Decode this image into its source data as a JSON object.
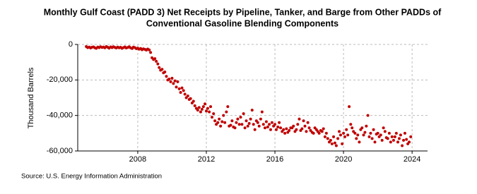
{
  "chart_data": {
    "type": "scatter",
    "title": "Monthly Gulf Coast (PADD 3) Net Receipts by Pipeline, Tanker, and Barge from Other PADDs of",
    "subtitle": "Conventional Gasoline Blending Components",
    "y_label": "Thousand Barrels",
    "source": "Source: U.S. Energy Information Administration",
    "color": "#c00000",
    "grid": true,
    "xlim": [
      2004.5,
      2024.9
    ],
    "xticks": [
      2008,
      2012,
      2016,
      2020,
      2024
    ],
    "ylim": [
      -60000,
      0
    ],
    "yticks": [
      {
        "value": -60000,
        "label": "-60,000"
      },
      {
        "value": -40000,
        "label": "-40,000"
      },
      {
        "value": -20000,
        "label": "-20,000"
      },
      0
    ],
    "x": [
      2005.0,
      2005.08,
      2005.17,
      2005.25,
      2005.33,
      2005.42,
      2005.5,
      2005.58,
      2005.67,
      2005.75,
      2005.83,
      2005.92,
      2006.0,
      2006.08,
      2006.17,
      2006.25,
      2006.33,
      2006.42,
      2006.5,
      2006.58,
      2006.67,
      2006.75,
      2006.83,
      2006.92,
      2007.0,
      2007.08,
      2007.17,
      2007.25,
      2007.33,
      2007.42,
      2007.5,
      2007.58,
      2007.67,
      2007.75,
      2007.83,
      2007.92,
      2008.0,
      2008.08,
      2008.17,
      2008.25,
      2008.33,
      2008.42,
      2008.5,
      2008.58,
      2008.67,
      2008.75,
      2008.83,
      2008.92,
      2009.0,
      2009.08,
      2009.17,
      2009.25,
      2009.33,
      2009.42,
      2009.5,
      2009.58,
      2009.67,
      2009.75,
      2009.83,
      2009.92,
      2010.0,
      2010.08,
      2010.17,
      2010.25,
      2010.33,
      2010.42,
      2010.5,
      2010.58,
      2010.67,
      2010.75,
      2010.83,
      2010.92,
      2011.0,
      2011.08,
      2011.17,
      2011.25,
      2011.33,
      2011.42,
      2011.5,
      2011.58,
      2011.67,
      2011.75,
      2011.83,
      2011.92,
      2012.0,
      2012.08,
      2012.17,
      2012.25,
      2012.33,
      2012.42,
      2012.5,
      2012.58,
      2012.67,
      2012.75,
      2012.83,
      2012.92,
      2013.0,
      2013.08,
      2013.17,
      2013.25,
      2013.33,
      2013.42,
      2013.5,
      2013.58,
      2013.67,
      2013.75,
      2013.83,
      2013.92,
      2014.0,
      2014.08,
      2014.17,
      2014.25,
      2014.33,
      2014.42,
      2014.5,
      2014.58,
      2014.67,
      2014.75,
      2014.83,
      2014.92,
      2015.0,
      2015.08,
      2015.17,
      2015.25,
      2015.33,
      2015.42,
      2015.5,
      2015.58,
      2015.67,
      2015.75,
      2015.83,
      2015.92,
      2016.0,
      2016.08,
      2016.17,
      2016.25,
      2016.33,
      2016.42,
      2016.5,
      2016.58,
      2016.67,
      2016.75,
      2016.83,
      2016.92,
      2017.0,
      2017.08,
      2017.17,
      2017.25,
      2017.33,
      2017.42,
      2017.5,
      2017.58,
      2017.67,
      2017.75,
      2017.83,
      2017.92,
      2018.0,
      2018.08,
      2018.17,
      2018.25,
      2018.33,
      2018.42,
      2018.5,
      2018.58,
      2018.67,
      2018.75,
      2018.83,
      2018.92,
      2019.0,
      2019.08,
      2019.17,
      2019.25,
      2019.33,
      2019.42,
      2019.5,
      2019.58,
      2019.67,
      2019.75,
      2019.83,
      2019.92,
      2020.0,
      2020.08,
      2020.17,
      2020.25,
      2020.33,
      2020.42,
      2020.5,
      2020.58,
      2020.67,
      2020.75,
      2020.83,
      2020.92,
      2021.0,
      2021.08,
      2021.17,
      2021.25,
      2021.33,
      2021.42,
      2021.5,
      2021.58,
      2021.67,
      2021.75,
      2021.83,
      2021.92,
      2022.0,
      2022.08,
      2022.17,
      2022.25,
      2022.33,
      2022.42,
      2022.5,
      2022.58,
      2022.67,
      2022.75,
      2022.83,
      2022.92,
      2023.0,
      2023.08,
      2023.17,
      2023.25,
      2023.33,
      2023.42,
      2023.5,
      2023.58,
      2023.67,
      2023.75,
      2023.83,
      2023.92
    ],
    "values": [
      -1200,
      -1800,
      -1500,
      -2000,
      -1600,
      -1400,
      -1900,
      -2200,
      -1500,
      -1800,
      -1300,
      -1700,
      -1500,
      -1900,
      -1200,
      -1600,
      -2100,
      -1400,
      -1800,
      -1300,
      -1700,
      -2000,
      -1500,
      -1900,
      -1600,
      -2200,
      -1800,
      -1400,
      -2000,
      -1700,
      -1300,
      -1900,
      -2300,
      -1500,
      -1800,
      -2400,
      -2100,
      -2700,
      -2300,
      -3000,
      -2500,
      -2800,
      -3200,
      -2600,
      -3100,
      -4500,
      -7500,
      -8500,
      -8000,
      -9500,
      -11000,
      -13000,
      -14500,
      -14000,
      -16000,
      -15500,
      -18000,
      -20000,
      -19500,
      -21000,
      -19000,
      -22000,
      -20500,
      -24000,
      -21000,
      -25000,
      -27000,
      -24500,
      -26000,
      -28000,
      -30000,
      -29000,
      -31000,
      -30500,
      -33000,
      -32000,
      -34500,
      -36000,
      -37000,
      -35500,
      -38000,
      -36500,
      -35000,
      -33500,
      -37500,
      -36000,
      -38000,
      -35000,
      -41000,
      -39000,
      -43000,
      -45000,
      -44000,
      -42000,
      -46000,
      -43500,
      -40000,
      -44000,
      -38000,
      -35000,
      -46000,
      -45500,
      -43000,
      -46500,
      -47000,
      -44000,
      -42000,
      -45000,
      -41000,
      -45000,
      -39000,
      -47000,
      -43000,
      -46000,
      -44500,
      -42000,
      -37000,
      -45000,
      -48000,
      -43000,
      -44000,
      -46000,
      -42000,
      -38000,
      -45000,
      -47000,
      -43500,
      -46500,
      -45000,
      -48000,
      -44000,
      -46000,
      -45000,
      -48000,
      -46500,
      -44000,
      -47000,
      -49000,
      -48000,
      -50000,
      -47500,
      -49500,
      -48500,
      -47000,
      -47000,
      -46000,
      -49000,
      -48000,
      -45000,
      -42000,
      -48500,
      -47500,
      -43000,
      -46000,
      -49000,
      -44000,
      -47000,
      -48500,
      -49500,
      -50000,
      -47000,
      -48000,
      -49000,
      -50000,
      -48500,
      -49000,
      -47500,
      -52000,
      -50000,
      -53000,
      -55000,
      -54000,
      -56000,
      -52000,
      -55500,
      -57000,
      -53000,
      -49000,
      -51000,
      -56000,
      -50000,
      -52000,
      -48000,
      -51000,
      -35000,
      -45000,
      -47000,
      -49000,
      -50000,
      -53000,
      -51000,
      -55000,
      -48000,
      -47000,
      -51000,
      -49500,
      -46000,
      -40000,
      -52000,
      -50000,
      -53000,
      -48000,
      -55000,
      -50500,
      -50000,
      -52000,
      -51000,
      -54000,
      -47000,
      -49000,
      -52500,
      -53000,
      -50000,
      -55000,
      -52000,
      -54000,
      -52000,
      -50000,
      -55000,
      -53000,
      -51000,
      -57000,
      -54000,
      -50000,
      -53500,
      -56000,
      -55000,
      -52000
    ]
  }
}
